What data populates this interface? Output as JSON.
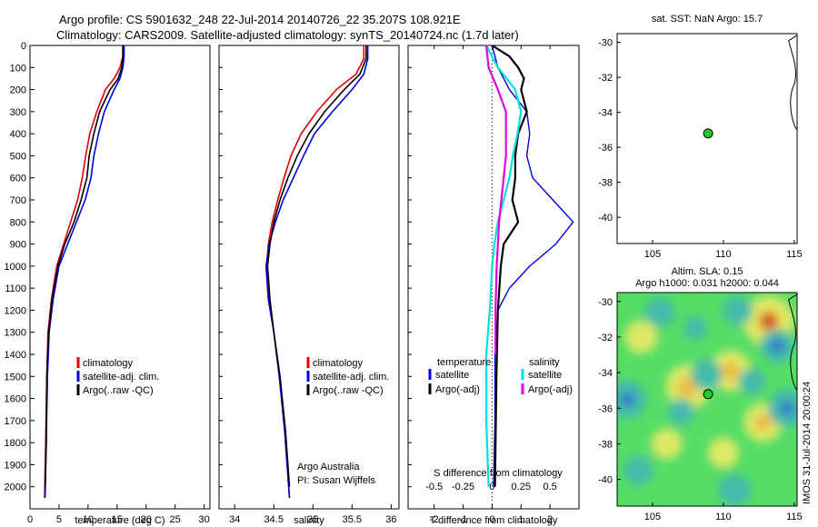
{
  "header": {
    "line1": "Argo profile: CS 5901632_248 22-Jul-2014 20140726_22 35.207S 108.921E",
    "line2": "Climatology: CARS2009. Satellite-adjusted climatology: synTS_20140724.nc (1.7d later)"
  },
  "colors": {
    "climatology": "#e00000",
    "satellite": "#0000e0",
    "argo": "#000000",
    "cyan": "#00e0e0",
    "magenta": "#e000e0"
  },
  "chart_data": [
    {
      "type": "line",
      "id": "temperature",
      "xlabel": "temperature (deg C)",
      "ylabel": "",
      "xlim": [
        0,
        31
      ],
      "ylim": [
        2100,
        0
      ],
      "xticks": [
        0,
        5,
        10,
        15,
        20,
        25,
        30
      ],
      "yticks": [
        0,
        100,
        200,
        300,
        400,
        500,
        600,
        700,
        800,
        900,
        1000,
        1100,
        1200,
        1300,
        1400,
        1500,
        1600,
        1700,
        1800,
        1900,
        2000
      ],
      "legend": [
        "climatology",
        "satellite-adj. clim.",
        "Argo(..raw -QC)"
      ],
      "series": [
        {
          "name": "climatology",
          "color": "#e00000",
          "points": [
            [
              16.0,
              0
            ],
            [
              16.0,
              50
            ],
            [
              15.5,
              100
            ],
            [
              14.5,
              150
            ],
            [
              13,
              200
            ],
            [
              11.5,
              300
            ],
            [
              10.3,
              400
            ],
            [
              9.6,
              500
            ],
            [
              9.0,
              600
            ],
            [
              8.2,
              700
            ],
            [
              7.0,
              800
            ],
            [
              5.8,
              900
            ],
            [
              4.6,
              1000
            ],
            [
              3.7,
              1150
            ],
            [
              3.1,
              1300
            ],
            [
              2.9,
              1500
            ],
            [
              2.7,
              1800
            ],
            [
              2.5,
              2050
            ]
          ]
        },
        {
          "name": "satellite-adj. clim.",
          "color": "#0000e0",
          "points": [
            [
              16.2,
              0
            ],
            [
              16.2,
              50
            ],
            [
              16.0,
              100
            ],
            [
              15.5,
              150
            ],
            [
              14.5,
              200
            ],
            [
              12.8,
              300
            ],
            [
              11.8,
              400
            ],
            [
              11.0,
              500
            ],
            [
              10.5,
              600
            ],
            [
              9.5,
              700
            ],
            [
              8.0,
              800
            ],
            [
              6.5,
              900
            ],
            [
              5.0,
              1000
            ],
            [
              4.0,
              1150
            ],
            [
              3.3,
              1300
            ],
            [
              3.0,
              1500
            ],
            [
              2.8,
              1800
            ],
            [
              2.6,
              2050
            ]
          ]
        },
        {
          "name": "Argo(..raw -QC)",
          "color": "#000000",
          "points": [
            [
              16.0,
              0
            ],
            [
              16.0,
              50
            ],
            [
              15.8,
              100
            ],
            [
              15.2,
              150
            ],
            [
              13.8,
              200
            ],
            [
              12.0,
              300
            ],
            [
              11.0,
              400
            ],
            [
              10.2,
              500
            ],
            [
              9.8,
              600
            ],
            [
              8.8,
              700
            ],
            [
              7.6,
              800
            ],
            [
              6.0,
              900
            ],
            [
              4.8,
              1000
            ],
            [
              3.8,
              1150
            ],
            [
              3.2,
              1300
            ],
            [
              2.9,
              1500
            ],
            [
              2.8,
              1800
            ],
            [
              2.6,
              2000
            ]
          ]
        }
      ]
    },
    {
      "type": "line",
      "id": "salinity",
      "xlabel": "salinity",
      "ylabel": "",
      "xlim": [
        33.8,
        36.1
      ],
      "ylim": [
        2100,
        0
      ],
      "xticks": [
        34,
        34.5,
        35,
        35.5,
        36
      ],
      "legend": [
        "climatology",
        "satellite-adj. clim.",
        "Argo(..raw -QC)"
      ],
      "annotation": [
        "Argo Australia",
        "PI: Susan Wijffels"
      ],
      "series": [
        {
          "name": "climatology",
          "color": "#e00000",
          "points": [
            [
              35.65,
              0
            ],
            [
              35.65,
              60
            ],
            [
              35.55,
              130
            ],
            [
              35.3,
              200
            ],
            [
              35.05,
              300
            ],
            [
              34.85,
              400
            ],
            [
              34.72,
              500
            ],
            [
              34.63,
              600
            ],
            [
              34.55,
              700
            ],
            [
              34.48,
              800
            ],
            [
              34.43,
              900
            ],
            [
              34.41,
              1000
            ],
            [
              34.44,
              1150
            ],
            [
              34.5,
              1300
            ],
            [
              34.57,
              1500
            ],
            [
              34.64,
              1750
            ],
            [
              34.7,
              2050
            ]
          ]
        },
        {
          "name": "satellite-adj. clim.",
          "color": "#0000e0",
          "points": [
            [
              35.7,
              0
            ],
            [
              35.7,
              60
            ],
            [
              35.65,
              130
            ],
            [
              35.5,
              200
            ],
            [
              35.25,
              300
            ],
            [
              35.02,
              400
            ],
            [
              34.88,
              500
            ],
            [
              34.75,
              600
            ],
            [
              34.62,
              700
            ],
            [
              34.52,
              800
            ],
            [
              34.44,
              900
            ],
            [
              34.4,
              1000
            ],
            [
              34.43,
              1150
            ],
            [
              34.5,
              1300
            ],
            [
              34.57,
              1500
            ],
            [
              34.64,
              1750
            ],
            [
              34.7,
              2050
            ]
          ]
        },
        {
          "name": "Argo(..raw -QC)",
          "color": "#000000",
          "points": [
            [
              35.68,
              0
            ],
            [
              35.68,
              60
            ],
            [
              35.6,
              130
            ],
            [
              35.4,
              200
            ],
            [
              35.15,
              300
            ],
            [
              34.95,
              400
            ],
            [
              34.8,
              500
            ],
            [
              34.68,
              600
            ],
            [
              34.58,
              700
            ],
            [
              34.5,
              800
            ],
            [
              34.45,
              900
            ],
            [
              34.42,
              1000
            ],
            [
              34.45,
              1150
            ],
            [
              34.5,
              1300
            ],
            [
              34.58,
              1500
            ],
            [
              34.65,
              1750
            ],
            [
              34.7,
              2000
            ]
          ]
        }
      ]
    },
    {
      "type": "line",
      "id": "difference",
      "xlabel": "T difference from climatology",
      "xlabel2": "S difference from climatology",
      "xlim": [
        -2.9,
        3.0
      ],
      "ylim": [
        2100,
        0
      ],
      "xticks": [
        -2,
        -1,
        0,
        1,
        2
      ],
      "xtick_labels": [
        "-2",
        "-1",
        "0",
        "1",
        "2"
      ],
      "sticks": [
        -0.5,
        -0.25,
        0,
        0.25,
        0.5
      ],
      "stick_labels": [
        "-0.5",
        "-0.25",
        "0",
        "0.25",
        "0.5"
      ],
      "legend_t_title": "temperature",
      "legend_s_title": "salinity",
      "legend_t": [
        "satellite",
        "Argo(-adj)"
      ],
      "legend_s": [
        "satellite",
        "Argo(-adj)"
      ],
      "series": [
        {
          "name": "T satellite",
          "color": "#0000e0",
          "points": [
            [
              0,
              0
            ],
            [
              0.2,
              100
            ],
            [
              0.6,
              200
            ],
            [
              1.2,
              300
            ],
            [
              1.3,
              400
            ],
            [
              1.2,
              500
            ],
            [
              1.4,
              600
            ],
            [
              2.1,
              700
            ],
            [
              2.8,
              800
            ],
            [
              2.2,
              900
            ],
            [
              1.3,
              1000
            ],
            [
              0.6,
              1100
            ],
            [
              0.2,
              1200
            ],
            [
              0.1,
              1400
            ],
            [
              0.1,
              1700
            ],
            [
              0.05,
              2000
            ]
          ]
        },
        {
          "name": "T Argo(-adj)",
          "color": "#000000",
          "points": [
            [
              0,
              0
            ],
            [
              0.6,
              50
            ],
            [
              0.9,
              100
            ],
            [
              1.1,
              150
            ],
            [
              1.0,
              200
            ],
            [
              1.2,
              300
            ],
            [
              0.9,
              400
            ],
            [
              0.8,
              500
            ],
            [
              0.8,
              600
            ],
            [
              0.7,
              700
            ],
            [
              0.9,
              800
            ],
            [
              0.4,
              900
            ],
            [
              0.3,
              1000
            ],
            [
              0.2,
              1200
            ],
            [
              0.15,
              1500
            ],
            [
              0.1,
              2000
            ]
          ]
        },
        {
          "name": "S satellite",
          "color": "#00e0e0",
          "points": [
            [
              -0.05,
              0
            ],
            [
              0.05,
              100
            ],
            [
              0.2,
              200
            ],
            [
              0.25,
              300
            ],
            [
              0.22,
              400
            ],
            [
              0.18,
              500
            ],
            [
              0.15,
              600
            ],
            [
              0.1,
              700
            ],
            [
              0.05,
              800
            ],
            [
              0.02,
              900
            ],
            [
              0.0,
              1000
            ],
            [
              -0.02,
              1200
            ],
            [
              -0.05,
              1400
            ],
            [
              -0.05,
              1700
            ],
            [
              -0.03,
              2000
            ]
          ]
        },
        {
          "name": "S Argo(-adj)",
          "color": "#e000e0",
          "points": [
            [
              -0.05,
              0
            ],
            [
              -0.03,
              100
            ],
            [
              0.05,
              200
            ],
            [
              0.12,
              300
            ],
            [
              0.12,
              400
            ],
            [
              0.12,
              500
            ],
            [
              0.1,
              600
            ],
            [
              0.08,
              700
            ],
            [
              0.06,
              800
            ],
            [
              0.05,
              900
            ],
            [
              0.04,
              1000
            ],
            [
              0.03,
              1200
            ],
            [
              0.03,
              1400
            ]
          ]
        }
      ]
    },
    {
      "type": "scatter",
      "id": "sst-map",
      "title": "sat. SST: NaN Argo: 15.7",
      "xlim": [
        102.5,
        115.2
      ],
      "ylim": [
        -41.5,
        -29.5
      ],
      "xticks": [
        105,
        110,
        115
      ],
      "yticks": [
        -30,
        -32,
        -34,
        -36,
        -38,
        -40
      ],
      "point": {
        "lon": 108.921,
        "lat": -35.207
      }
    },
    {
      "type": "heatmap",
      "id": "sla-map",
      "title": "Altim. SLA: 0.15",
      "subtitle": "Argo h1000: 0.031 h2000: 0.044",
      "xlim": [
        102.5,
        115.2
      ],
      "ylim": [
        -41.5,
        -29.5
      ],
      "xticks": [
        105,
        110,
        115
      ],
      "yticks": [
        -30,
        -32,
        -34,
        -36,
        -38,
        -40
      ],
      "point": {
        "lon": 108.921,
        "lat": -35.207
      },
      "blobs": [
        {
          "lon": 113.2,
          "lat": -31.1,
          "v": 1.0
        },
        {
          "lon": 107.5,
          "lat": -34.8,
          "v": 0.85
        },
        {
          "lon": 110.5,
          "lat": -33.9,
          "v": 0.75
        },
        {
          "lon": 112.8,
          "lat": -36.8,
          "v": 0.7
        },
        {
          "lon": 104.2,
          "lat": -32.0,
          "v": 0.55
        },
        {
          "lon": 106.0,
          "lat": -38.0,
          "v": 0.5
        },
        {
          "lon": 110.0,
          "lat": -38.5,
          "v": 0.5
        },
        {
          "lon": 103.2,
          "lat": -35.5,
          "v": -1.0
        },
        {
          "lon": 114.5,
          "lat": -36.0,
          "v": -1.0
        },
        {
          "lon": 113.8,
          "lat": -32.5,
          "v": -0.85
        },
        {
          "lon": 111.0,
          "lat": -30.5,
          "v": -0.7
        },
        {
          "lon": 105.5,
          "lat": -30.6,
          "v": -0.7
        },
        {
          "lon": 108.8,
          "lat": -34.1,
          "v": -0.75
        },
        {
          "lon": 107.0,
          "lat": -36.2,
          "v": -0.6
        },
        {
          "lon": 104.0,
          "lat": -39.5,
          "v": -0.7
        },
        {
          "lon": 110.8,
          "lat": -40.6,
          "v": -0.8
        },
        {
          "lon": 108.0,
          "lat": -31.5,
          "v": -0.5
        },
        {
          "lon": 112.0,
          "lat": -34.5,
          "v": -0.6
        }
      ]
    }
  ],
  "watermark": "IMOS 31-Jul-2014 20:00:24"
}
